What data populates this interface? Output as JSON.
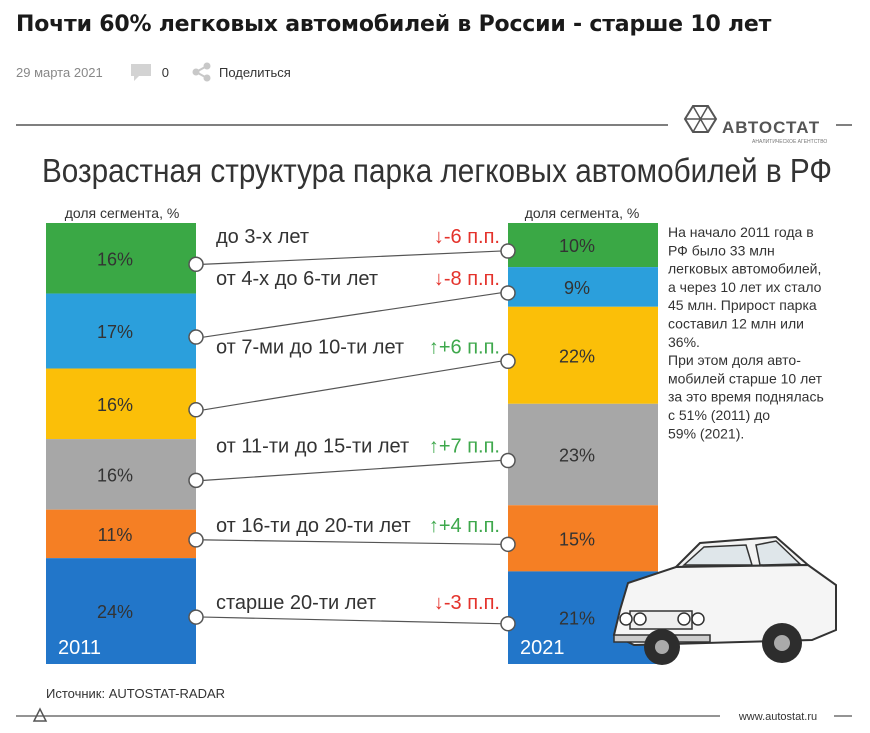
{
  "article": {
    "title": "Почти 60% легковых автомобилей в России - старше 10 лет",
    "date": "29 марта 2021",
    "comment_count": "0",
    "share_label": "Поделиться"
  },
  "brand": {
    "name": "АВТОСТАТ",
    "tagline": "АНАЛИТИЧЕСКОЕ АГЕНТСТВО",
    "site": "www.autostat.ru"
  },
  "chart_data": {
    "type": "bar",
    "title": "Возрастная структура парка легковых автомобилей в РФ",
    "column_header": "доля сегмента, %",
    "categories": [
      "до 3-х лет",
      "от 4-х до 6-ти лет",
      "от 7-ми до 10-ти лет",
      "от 11-ти до 15-ти лет",
      "от 16-ти до 20-ти лет",
      "старше 20-ти лет"
    ],
    "series": [
      {
        "name": "2011",
        "values": [
          16,
          17,
          16,
          16,
          11,
          24
        ],
        "labels": [
          "16%",
          "17%",
          "16%",
          "16%",
          "11%",
          "24%"
        ]
      },
      {
        "name": "2021",
        "values": [
          10,
          9,
          22,
          23,
          15,
          21
        ],
        "labels": [
          "10%",
          "9%",
          "22%",
          "23%",
          "15%",
          "21%"
        ]
      }
    ],
    "changes": [
      {
        "arrow": "↓",
        "text": "-6 п.п.",
        "direction": "down"
      },
      {
        "arrow": "↓",
        "text": "-8 п.п.",
        "direction": "down"
      },
      {
        "arrow": "↑",
        "text": "+6 п.п.",
        "direction": "up"
      },
      {
        "arrow": "↑",
        "text": "+7 п.п.",
        "direction": "up"
      },
      {
        "arrow": "↑",
        "text": "+4 п.п.",
        "direction": "up"
      },
      {
        "arrow": "↓",
        "text": "-3 п.п.",
        "direction": "down"
      }
    ],
    "segment_colors": [
      "#3aa845",
      "#2b9fdc",
      "#fbbf08",
      "#a7a7a7",
      "#f57f24",
      "#2276c9"
    ],
    "up_color": "#3ea84c",
    "down_color": "#e4322b",
    "note": [
      "На начало 2011 года в",
      "РФ было 33 млн",
      "легковых автомобилей,",
      "а через 10 лет их стало",
      "45 млн. Прирост парка",
      "составил 12 млн или",
      "36%.",
      "При этом доля авто-",
      "мобилей старше 10 лет",
      "за это время поднялась",
      "с 51% (2011) до",
      "59% (2021)."
    ],
    "source": "Источник: AUTOSTAT-RADAR"
  }
}
